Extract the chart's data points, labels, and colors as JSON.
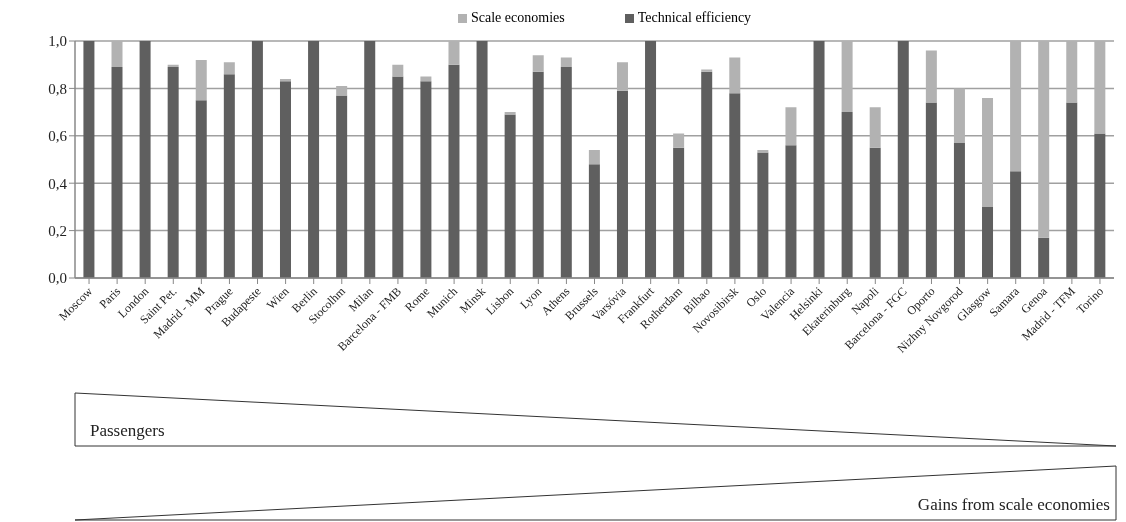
{
  "chart_data": {
    "type": "bar",
    "stacked": true,
    "categories": [
      "Moscow",
      "Paris",
      "London",
      "Saint Pet.",
      "Madrid - MM",
      "Prague",
      "Budapeste",
      "Wien",
      "Berlin",
      "Stocolhm",
      "Milan",
      "Barcelona - FMB",
      "Rome",
      "Munich",
      "Minsk",
      "Lisbon",
      "Lyon",
      "Athens",
      "Brussels",
      "Varsóvia",
      "Frankfurt",
      "Rotherdam",
      "Bilbao",
      "Novosibirsk",
      "Oslo",
      "Valencia",
      "Helsinki",
      "Ekaterinburg",
      "Napoli",
      "Barcelona - FGC",
      "Oporto",
      "Nizhny Novgorod",
      "Glasgow",
      "Samara",
      "Genoa",
      "Madrid - TFM",
      "Torino"
    ],
    "series": [
      {
        "name": "Technical efficiency",
        "color": "#5f5f5f",
        "values": [
          1,
          0.89,
          1,
          0.89,
          0.75,
          0.86,
          1,
          0.83,
          1,
          0.77,
          1,
          0.85,
          0.83,
          0.9,
          1,
          0.69,
          0.87,
          0.89,
          0.48,
          0.79,
          1,
          0.55,
          0.87,
          0.78,
          0.53,
          0.56,
          1,
          0.7,
          0.55,
          1,
          0.74,
          0.57,
          0.3,
          0.45,
          0.17,
          0.74,
          0.61
        ]
      },
      {
        "name": "Scale economies",
        "color": "#b2b2b2",
        "values": [
          0,
          0.11,
          0,
          0.01,
          0.17,
          0.05,
          0,
          0.01,
          0,
          0.04,
          0,
          0.05,
          0.02,
          0.1,
          0,
          0.01,
          0.07,
          0.04,
          0.06,
          0.12,
          0,
          0.06,
          0.01,
          0.15,
          0.01,
          0.16,
          0,
          0.3,
          0.17,
          0,
          0.22,
          0.23,
          0.46,
          0.55,
          0.83,
          0.26,
          0.39
        ]
      }
    ],
    "ylim": [
      0,
      1
    ],
    "yticks": [
      {
        "value": 0,
        "label": "0,0"
      },
      {
        "value": 0.2,
        "label": "0,2"
      },
      {
        "value": 0.4,
        "label": "0,4"
      },
      {
        "value": 0.6,
        "label": "0,6"
      },
      {
        "value": 0.8,
        "label": "0,8"
      },
      {
        "value": 1,
        "label": "1,0"
      }
    ],
    "grid": "y",
    "legend": "top",
    "annotations": [
      "Passengers",
      "Gains from scale economies"
    ]
  }
}
